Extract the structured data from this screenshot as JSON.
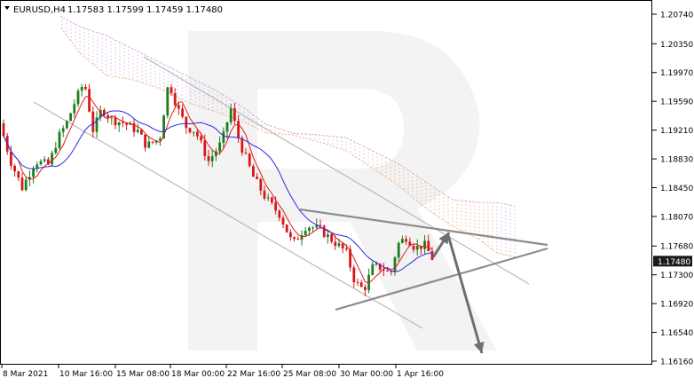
{
  "header": {
    "symbol": "EURUSD,H4",
    "ohlc": "1.17583 1.17599 1.17459 1.17480"
  },
  "chart_data": {
    "type": "candlestick",
    "y_ticks": [
      "1.20740",
      "1.20350",
      "1.19970",
      "1.19590",
      "1.19210",
      "1.18830",
      "1.18450",
      "1.18070",
      "1.17680",
      "1.17300",
      "1.16920",
      "1.16540",
      "1.16160"
    ],
    "y_tick_values": [
      1.2074,
      1.2035,
      1.1997,
      1.1959,
      1.1921,
      1.1883,
      1.1845,
      1.1807,
      1.1768,
      1.173,
      1.1692,
      1.1654,
      1.1616
    ],
    "ylim": [
      1.161,
      1.209
    ],
    "x_ticks": [
      "8 Mar 2021",
      "10 Mar 16:00",
      "15 Mar 08:00",
      "18 Mar 00:00",
      "22 Mar 16:00",
      "25 Mar 08:00",
      "30 Mar 00:00",
      "1 Apr 16:00"
    ],
    "current_price_label": "1.17480",
    "colors": {
      "bull": "#1e7d1e",
      "bear": "#d81818",
      "tenkan": "#e51b1b",
      "kijun": "#2a2adf",
      "cloud_up": "#c79bd9",
      "cloud_down": "#f0a060",
      "channel": "#b8b8b8",
      "triangle": "#8c8c8c",
      "arrow": "#6f6f6f",
      "price_tag_bg": "#1a1a1a"
    }
  }
}
